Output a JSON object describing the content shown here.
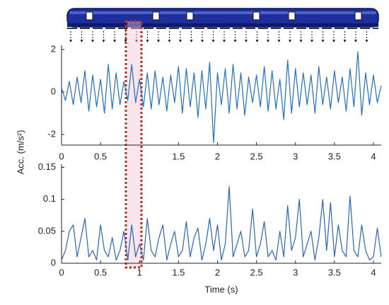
{
  "y_label": "Acc. (m/s²)",
  "chart_data": [
    {
      "type": "line",
      "x": [
        0,
        0.05,
        0.1,
        0.15,
        0.2,
        0.25,
        0.3,
        0.35,
        0.4,
        0.45,
        0.5,
        0.55,
        0.6,
        0.65,
        0.7,
        0.75,
        0.8,
        0.85,
        0.9,
        0.95,
        1,
        1.05,
        1.1,
        1.15,
        1.2,
        1.25,
        1.3,
        1.35,
        1.4,
        1.45,
        1.5,
        1.55,
        1.6,
        1.65,
        1.7,
        1.75,
        1.8,
        1.85,
        1.9,
        1.95,
        2,
        2.05,
        2.1,
        2.15,
        2.2,
        2.25,
        2.3,
        2.35,
        2.4,
        2.45,
        2.5,
        2.55,
        2.6,
        2.65,
        2.7,
        2.75,
        2.8,
        2.85,
        2.9,
        2.95,
        3,
        3.05,
        3.1,
        3.15,
        3.2,
        3.25,
        3.3,
        3.35,
        3.4,
        3.45,
        3.5,
        3.55,
        3.6,
        3.65,
        3.7,
        3.75,
        3.8,
        3.85,
        3.9,
        3.95,
        4,
        4.05,
        4.1
      ],
      "series": [
        {
          "color": "#1f6fc4",
          "values": [
            0.2,
            -0.4,
            0.5,
            -0.6,
            0.7,
            -0.5,
            1.0,
            -0.9,
            0.8,
            -0.7,
            0.6,
            -1.0,
            1.3,
            -0.8,
            0.9,
            -0.6,
            0.5,
            -0.4,
            1.3,
            -0.5,
            0.6,
            -0.7,
            0.9,
            -0.8,
            1.0,
            -0.6,
            0.7,
            -0.9,
            0.8,
            -0.5,
            1.2,
            -1.0,
            1.1,
            -0.7,
            0.9,
            -1.2,
            1.0,
            -0.8,
            1.4,
            -2.4,
            0.9,
            -0.6,
            1.1,
            -1.0,
            1.3,
            -0.8,
            0.9,
            -1.1,
            0.7,
            -0.5,
            0.8,
            -0.7,
            1.2,
            -0.9,
            1.0,
            -0.8,
            0.6,
            -1.3,
            1.5,
            -1.0,
            1.1,
            -0.7,
            0.9,
            -0.6,
            0.8,
            -1.0,
            1.2,
            -0.6,
            0.7,
            -0.8,
            1.0,
            -0.5,
            0.7,
            -0.9,
            1.1,
            -0.7,
            1.9,
            -1.1,
            0.9,
            -0.6,
            0.8,
            -0.5,
            0.3
          ]
        }
      ],
      "xlim": [
        0,
        4.1
      ],
      "xticks": [
        0,
        0.5,
        1.5,
        2,
        2.5,
        3,
        3.5,
        4
      ],
      "ylim": [
        -2.5,
        2.2
      ],
      "yticks": [
        -2,
        0,
        2
      ]
    },
    {
      "type": "line",
      "x": [
        0,
        0.05,
        0.1,
        0.15,
        0.2,
        0.25,
        0.3,
        0.35,
        0.4,
        0.45,
        0.5,
        0.55,
        0.6,
        0.65,
        0.7,
        0.75,
        0.8,
        0.85,
        0.9,
        0.95,
        1,
        1.05,
        1.1,
        1.15,
        1.2,
        1.25,
        1.3,
        1.35,
        1.4,
        1.45,
        1.5,
        1.55,
        1.6,
        1.65,
        1.7,
        1.75,
        1.8,
        1.85,
        1.9,
        1.95,
        2,
        2.05,
        2.1,
        2.15,
        2.2,
        2.25,
        2.3,
        2.35,
        2.4,
        2.45,
        2.5,
        2.55,
        2.6,
        2.65,
        2.7,
        2.75,
        2.8,
        2.85,
        2.9,
        2.95,
        3,
        3.05,
        3.1,
        3.15,
        3.2,
        3.25,
        3.3,
        3.35,
        3.4,
        3.45,
        3.5,
        3.55,
        3.6,
        3.65,
        3.7,
        3.75,
        3.8,
        3.85,
        3.9,
        3.95,
        4,
        4.05,
        4.1
      ],
      "series": [
        {
          "color": "#2a64b8",
          "values": [
            0.005,
            0.02,
            0.05,
            0.06,
            0.01,
            0.04,
            0.07,
            0.01,
            0.02,
            0.005,
            0.06,
            0.02,
            0.01,
            0.04,
            0.005,
            0.02,
            0.05,
            0.005,
            0.06,
            0.01,
            0.03,
            0.005,
            0.07,
            0.02,
            0.01,
            0.04,
            0.06,
            0.005,
            0.03,
            0.05,
            0.01,
            0.02,
            0.065,
            0.01,
            0.04,
            0.055,
            0.005,
            0.03,
            0.07,
            0.02,
            0.06,
            0.005,
            0.03,
            0.12,
            0.01,
            0.03,
            0.05,
            0.01,
            0.02,
            0.085,
            0.01,
            0.03,
            0.065,
            0.01,
            0.02,
            0.005,
            0.05,
            0.01,
            0.09,
            0.02,
            0.04,
            0.1,
            0.01,
            0.03,
            0.05,
            0.005,
            0.04,
            0.1,
            0.02,
            0.095,
            0.01,
            0.06,
            0.02,
            0.01,
            0.105,
            0.02,
            0.01,
            0.06,
            0.02,
            0.005,
            0.01,
            0.055,
            0.01
          ]
        }
      ],
      "xlim": [
        0,
        4.1
      ],
      "xticks": [
        0,
        0.5,
        1,
        1.5,
        2,
        2.5,
        3,
        3.5,
        4
      ],
      "ylim": [
        0,
        0.155
      ],
      "yticks": [
        0,
        0.05,
        0.1,
        0.15
      ],
      "xlabel": "Time (s)"
    }
  ]
}
